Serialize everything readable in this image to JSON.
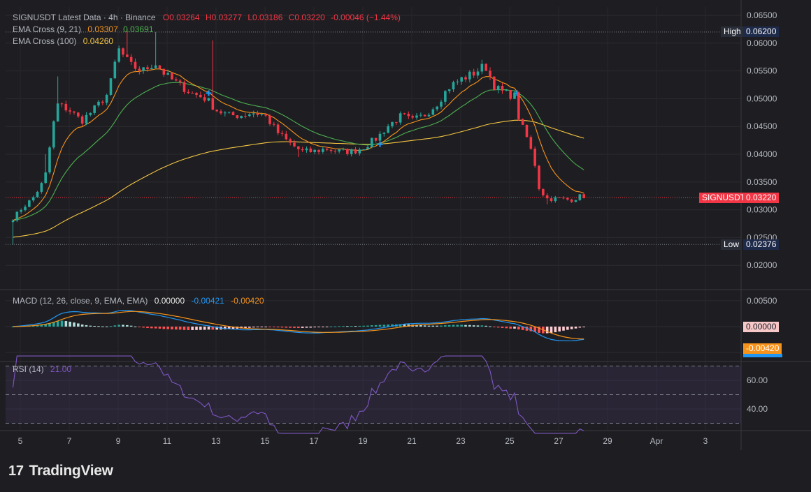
{
  "header": {
    "symbol_line": "SIGNUSDT Latest Data · 4h · Binance",
    "open": "O0.03264",
    "high": "H0.03277",
    "low": "L0.03186",
    "close": "C0.03220",
    "change": "-0.00046 (−1.44%)",
    "ema_cross_label": "EMA Cross (9, 21)",
    "ema_fast_value": "0.03307",
    "ema_slow_value": "0.03691",
    "ema100_label": "EMA Cross (100)",
    "ema100_value": "0.04260"
  },
  "price_tags": {
    "high_label": "High",
    "high_value": "0.06200",
    "low_label": "Low",
    "low_value": "0.02376",
    "symbol_label": "SIGNUSDT",
    "last_value": "0.03220",
    "macd_zero": "0.00000",
    "macd_signal_tag": "-0.00420"
  },
  "macd_header": {
    "label": "MACD (12, 26, close, 9, EMA, EMA)",
    "hist": "0.00000",
    "macd": "-0.00421",
    "signal": "-0.00420"
  },
  "rsi_header": {
    "label": "RSI (14)",
    "value": "21.00"
  },
  "logo": {
    "mark": "17",
    "text": "TradingView"
  },
  "colors": {
    "background": "#1e1e22",
    "up": "#26a69a",
    "down": "#f23645",
    "ema_fast": "#f7931a",
    "ema_slow": "#4caf50",
    "ema100": "#f5c542",
    "macd_line": "#2196f3",
    "signal_line": "#f7931a",
    "rsi_line": "#7e57c2"
  },
  "chart_data": {
    "type": "candlestick",
    "title": "SIGNUSDT Latest Data · 4h · Binance",
    "x_ticks": [
      "5",
      "7",
      "9",
      "11",
      "13",
      "15",
      "17",
      "19",
      "21",
      "23",
      "25",
      "27",
      "29",
      "Apr",
      "3"
    ],
    "price_axis": {
      "ticks": [
        "0.06500",
        "0.06000",
        "0.05500",
        "0.05000",
        "0.04500",
        "0.04000",
        "0.03500",
        "0.03000",
        "0.02500",
        "0.02000"
      ],
      "ylim": [
        0.0175,
        0.0665
      ]
    },
    "macd_axis": {
      "ticks": [
        "0.00500"
      ],
      "ylim": [
        -0.006,
        0.0065
      ]
    },
    "rsi_axis": {
      "ticks": [
        "60.00",
        "40.00"
      ],
      "ylim": [
        23,
        77
      ],
      "bands": [
        70,
        30
      ]
    },
    "high": 0.062,
    "low": 0.02376,
    "last": 0.0322,
    "day_range": [
      4.7,
      28.1
    ],
    "close_anchors": [
      [
        4.72,
        0.0285
      ],
      [
        5.0,
        0.03
      ],
      [
        5.5,
        0.032
      ],
      [
        6.0,
        0.0355
      ],
      [
        6.3,
        0.044
      ],
      [
        6.5,
        0.049
      ],
      [
        7.0,
        0.048
      ],
      [
        7.5,
        0.046
      ],
      [
        8.0,
        0.048
      ],
      [
        8.6,
        0.051
      ],
      [
        9.0,
        0.059
      ],
      [
        9.5,
        0.056
      ],
      [
        10.0,
        0.055
      ],
      [
        10.5,
        0.0565
      ],
      [
        11.0,
        0.054
      ],
      [
        11.5,
        0.0525
      ],
      [
        12.0,
        0.051
      ],
      [
        12.6,
        0.05
      ],
      [
        13.0,
        0.048
      ],
      [
        13.5,
        0.047
      ],
      [
        14.0,
        0.047
      ],
      [
        14.5,
        0.0475
      ],
      [
        15.0,
        0.047
      ],
      [
        15.5,
        0.044
      ],
      [
        16.0,
        0.042
      ],
      [
        16.5,
        0.0405
      ],
      [
        17.0,
        0.0405
      ],
      [
        17.5,
        0.041
      ],
      [
        18.0,
        0.0405
      ],
      [
        18.6,
        0.0405
      ],
      [
        19.0,
        0.0412
      ],
      [
        19.6,
        0.043
      ],
      [
        20.0,
        0.045
      ],
      [
        20.6,
        0.047
      ],
      [
        21.0,
        0.046
      ],
      [
        21.5,
        0.047
      ],
      [
        22.0,
        0.049
      ],
      [
        22.5,
        0.052
      ],
      [
        23.0,
        0.0535
      ],
      [
        23.5,
        0.0545
      ],
      [
        24.0,
        0.056
      ],
      [
        24.4,
        0.052
      ],
      [
        24.8,
        0.051
      ],
      [
        25.2,
        0.0505
      ],
      [
        25.4,
        0.046
      ],
      [
        25.7,
        0.043
      ],
      [
        26.0,
        0.039
      ],
      [
        26.2,
        0.034
      ],
      [
        26.5,
        0.032
      ],
      [
        27.0,
        0.032
      ],
      [
        27.5,
        0.0318
      ],
      [
        28.0,
        0.0326
      ],
      [
        28.1,
        0.0322
      ]
    ],
    "spike_highs": [
      [
        6.0,
        0.04
      ],
      [
        6.6,
        0.054
      ],
      [
        9.3,
        0.0625
      ],
      [
        10.6,
        0.062
      ],
      [
        12.8,
        0.0605
      ],
      [
        23.9,
        0.057
      ]
    ],
    "spike_lows": [
      [
        4.75,
        0.02376
      ],
      [
        16.4,
        0.0395
      ],
      [
        26.6,
        0.031
      ]
    ]
  }
}
